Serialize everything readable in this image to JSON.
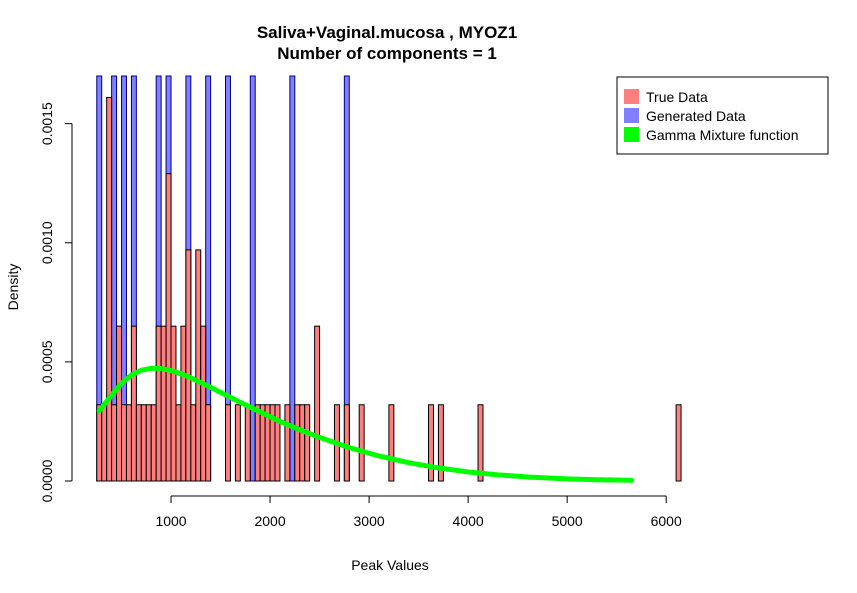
{
  "chart_data": {
    "type": "bar",
    "title": "Saliva+Vaginal.mucosa , MYOZ1",
    "subtitle": "Number of components =  1",
    "xlabel": "Peak Values",
    "ylabel": "Density",
    "xlim": [
      0,
      6200
    ],
    "ylim": [
      0,
      0.0017
    ],
    "x_ticks": [
      1000,
      2000,
      3000,
      4000,
      5000,
      6000
    ],
    "x_tick_labels": [
      "1000",
      "2000",
      "3000",
      "4000",
      "5000",
      "6000"
    ],
    "y_ticks": [
      0.0,
      0.0005,
      0.001,
      0.0015
    ],
    "y_tick_labels": [
      "0.0000",
      "0.0005",
      "0.0010",
      "0.0015"
    ],
    "grid": false,
    "legend_position": "top-right",
    "bin_width": 50,
    "series": [
      {
        "name": "True Data",
        "color": "#FF7F7F",
        "kind": "histogram",
        "bins": [
          {
            "x": 275,
            "y": 0.00032
          },
          {
            "x": 325,
            "y": 0.00032
          },
          {
            "x": 375,
            "y": 0.00161
          },
          {
            "x": 425,
            "y": 0.00032
          },
          {
            "x": 475,
            "y": 0.00065
          },
          {
            "x": 525,
            "y": 0.00032
          },
          {
            "x": 575,
            "y": 0.00032
          },
          {
            "x": 625,
            "y": 0.00065
          },
          {
            "x": 675,
            "y": 0.00032
          },
          {
            "x": 725,
            "y": 0.00032
          },
          {
            "x": 775,
            "y": 0.00032
          },
          {
            "x": 825,
            "y": 0.00032
          },
          {
            "x": 875,
            "y": 0.00065
          },
          {
            "x": 925,
            "y": 0.00065
          },
          {
            "x": 975,
            "y": 0.00129
          },
          {
            "x": 1025,
            "y": 0.00065
          },
          {
            "x": 1075,
            "y": 0.00032
          },
          {
            "x": 1125,
            "y": 0.00065
          },
          {
            "x": 1175,
            "y": 0.00097
          },
          {
            "x": 1225,
            "y": 0.00032
          },
          {
            "x": 1275,
            "y": 0.00097
          },
          {
            "x": 1325,
            "y": 0.00065
          },
          {
            "x": 1375,
            "y": 0.00032
          },
          {
            "x": 1575,
            "y": 0.00032
          },
          {
            "x": 1675,
            "y": 0.00032
          },
          {
            "x": 1775,
            "y": 0.00032
          },
          {
            "x": 1875,
            "y": 0.00032
          },
          {
            "x": 1925,
            "y": 0.00032
          },
          {
            "x": 1975,
            "y": 0.00032
          },
          {
            "x": 2025,
            "y": 0.00032
          },
          {
            "x": 2075,
            "y": 0.00032
          },
          {
            "x": 2175,
            "y": 0.00032
          },
          {
            "x": 2275,
            "y": 0.00032
          },
          {
            "x": 2325,
            "y": 0.00032
          },
          {
            "x": 2375,
            "y": 0.00032
          },
          {
            "x": 2475,
            "y": 0.00065
          },
          {
            "x": 2675,
            "y": 0.00032
          },
          {
            "x": 2775,
            "y": 0.00032
          },
          {
            "x": 2925,
            "y": 0.00032
          },
          {
            "x": 3225,
            "y": 0.00032
          },
          {
            "x": 3625,
            "y": 0.00032
          },
          {
            "x": 3725,
            "y": 0.00032
          },
          {
            "x": 4125,
            "y": 0.00032
          },
          {
            "x": 6125,
            "y": 0.00032
          }
        ]
      },
      {
        "name": "Generated Data",
        "color": "#7F7FFF",
        "kind": "histogram",
        "bins": [
          {
            "x": 275,
            "y": 0.0017
          },
          {
            "x": 425,
            "y": 0.0017
          },
          {
            "x": 525,
            "y": 0.0017
          },
          {
            "x": 625,
            "y": 0.0017
          },
          {
            "x": 875,
            "y": 0.0017
          },
          {
            "x": 975,
            "y": 0.0017
          },
          {
            "x": 1175,
            "y": 0.0017
          },
          {
            "x": 1375,
            "y": 0.0017
          },
          {
            "x": 1575,
            "y": 0.0017
          },
          {
            "x": 1825,
            "y": 0.0017
          },
          {
            "x": 2225,
            "y": 0.0017
          },
          {
            "x": 2775,
            "y": 0.0017
          }
        ]
      },
      {
        "name": "Gamma Mixture function",
        "color": "#00FF00",
        "kind": "line",
        "x": [
          275,
          400,
          500,
          600,
          700,
          800,
          900,
          1000,
          1100,
          1200,
          1300,
          1400,
          1500,
          1700,
          1900,
          2100,
          2300,
          2500,
          2800,
          3100,
          3400,
          3700,
          4000,
          4300,
          4600,
          5000,
          5300,
          5650
        ],
        "y": [
          0.000295,
          0.00036,
          0.00041,
          0.000445,
          0.000465,
          0.000473,
          0.000472,
          0.000464,
          0.00045,
          0.000433,
          0.000413,
          0.000393,
          0.000372,
          0.00033,
          0.00029,
          0.00025,
          0.000215,
          0.000183,
          0.00014,
          0.000105,
          7.7e-05,
          5.5e-05,
          3.8e-05,
          2.6e-05,
          1.7e-05,
          9e-06,
          5.5e-06,
          3e-06
        ]
      }
    ]
  }
}
